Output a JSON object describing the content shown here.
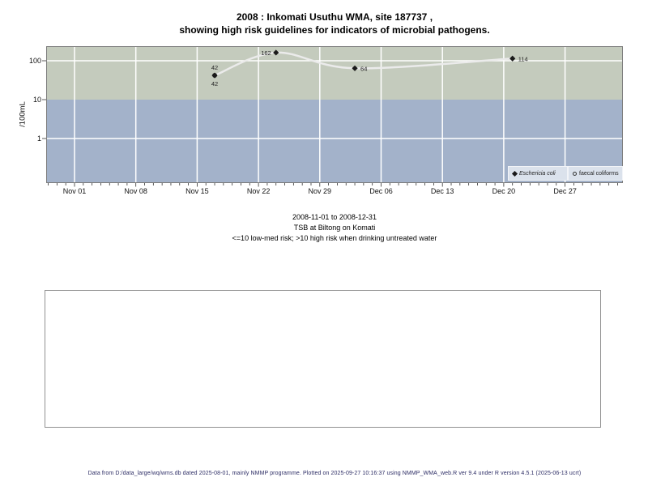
{
  "title": {
    "line1": "2008 : Inkomati Usuthu WMA, site 187737 ,",
    "line2": "showing high risk guidelines for indicators of microbial pathogens."
  },
  "chart_data": {
    "type": "line",
    "title": "2008 : Inkomati Usuthu WMA, site 187737 , showing high risk guidelines for indicators of microbial pathogens.",
    "ylabel": "/100mL",
    "yscale": "log",
    "ylim": [
      0.07,
      240
    ],
    "y_ticks": [
      1,
      10,
      100
    ],
    "x_start": "2008-11-01",
    "x_end": "2008-12-31",
    "x_tick_labels": [
      "Nov 01",
      "Nov 08",
      "Nov 15",
      "Nov 22",
      "Nov 29",
      "Dec 06",
      "Dec 13",
      "Dec 20",
      "Dec 27"
    ],
    "grid": true,
    "risk_threshold": 10,
    "risk_bands": [
      {
        "range": ">10",
        "meaning": "high risk when drinking untreated water"
      },
      {
        "range": "<=10",
        "meaning": "low-med risk"
      }
    ],
    "series": [
      {
        "name": "Eschericia coli",
        "marker": "filled-diamond",
        "connected": true,
        "points": [
          {
            "date": "2008-11-17",
            "day_offset": 16,
            "value": 42,
            "label": "42",
            "label_side": "above"
          },
          {
            "date": "2008-11-24",
            "day_offset": 23,
            "value": 162,
            "label": "162",
            "label_side": "left"
          },
          {
            "date": "2008-12-03",
            "day_offset": 32,
            "value": 64,
            "label": "64",
            "label_side": "right"
          },
          {
            "date": "2008-12-21",
            "day_offset": 50,
            "value": 114,
            "label": "114",
            "label_side": "right"
          }
        ]
      },
      {
        "name": "faecal coliforms",
        "marker": "open-circle",
        "connected": false,
        "points": [
          {
            "date": "2008-11-17",
            "day_offset": 16,
            "value": 42,
            "label": "42",
            "label_side": "below"
          }
        ]
      }
    ],
    "legend_position": "bottom-right-inside"
  },
  "legend": {
    "items": [
      {
        "label": "Eschericia coli",
        "marker": "filled-diamond",
        "italic": true
      },
      {
        "label": "faecal coliforms",
        "marker": "open-circle",
        "italic": false
      }
    ]
  },
  "caption": {
    "line1": "2008-11-01 to 2008-12-31",
    "line2": "TSB at Biltong on Komati",
    "line3": "<=10 low-med risk; >10 high risk when drinking untreated water"
  },
  "footer": {
    "text": "Data from D:/data_large/wq/wms.db dated 2025-08-01, mainly NMMP programme. Plotted on 2025-09-27 10:16:37 using NMMP_WMA_web.R ver 9.4 under R version 4.5.1 (2025-06-13 ucrt)"
  },
  "colors": {
    "high_risk_band": "#c4cbbd",
    "low_risk_band": "#a3b2ca",
    "gridline": "#ffffff",
    "series_line": "#ebebeb",
    "marker": "#1a1a1a",
    "plot_border": "#7d7d7d",
    "axis_tick": "#333333",
    "legend_bg": "#dbe2ec",
    "footer_text": "#2e2e66",
    "label_text": "#222222"
  }
}
